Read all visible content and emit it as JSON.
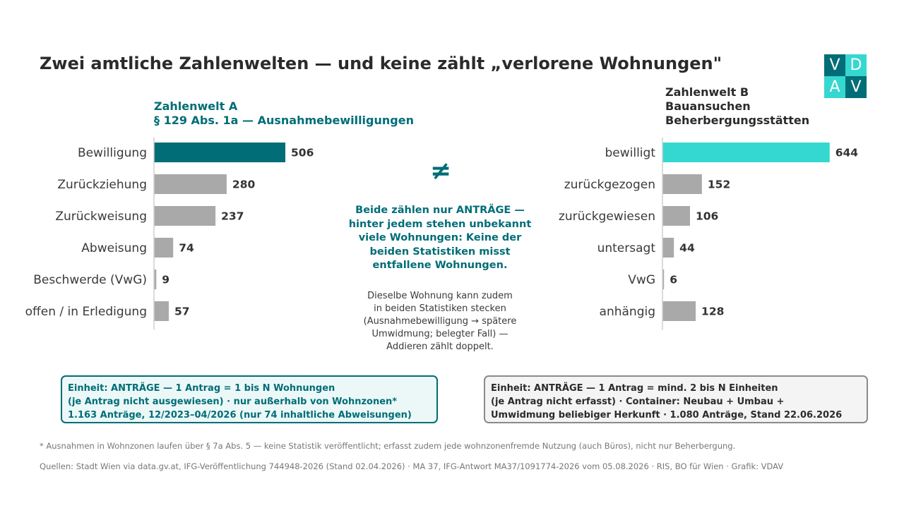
{
  "title": "Zwei amtliche Zahlenwelten — und keine zählt „verlorene Wohnungen\"",
  "logo": {
    "letters": [
      "V",
      "D",
      "A",
      "V"
    ],
    "colors": [
      "#006d77",
      "#35d8d0",
      "#35d8d0",
      "#006d77"
    ]
  },
  "colors": {
    "accent_a": "#006d77",
    "accent_b": "#35d8d0",
    "neutral": "#a9a9a9"
  },
  "chart_data": [
    {
      "type": "bar",
      "orientation": "horizontal",
      "title_lines": [
        "Zahlenwelt A",
        "§ 129 Abs. 1a — Ausnahmebewilligungen"
      ],
      "categories": [
        "Bewilligung",
        "Zurückziehung",
        "Zurückweisung",
        "Abweisung",
        "Beschwerde (VwG)",
        "offen / in Erledigung"
      ],
      "values": [
        506,
        280,
        237,
        74,
        9,
        57
      ],
      "highlight_index": 0,
      "highlight_color": "#006d77"
    },
    {
      "type": "bar",
      "orientation": "horizontal",
      "title_lines": [
        "Zahlenwelt B",
        "Bauansuchen",
        "Beherbergungsstätten"
      ],
      "categories": [
        "bewilligt",
        "zurückgezogen",
        "zurückgewiesen",
        "untersagt",
        "VwG",
        "anhängig"
      ],
      "values": [
        644,
        152,
        106,
        44,
        6,
        128
      ],
      "highlight_index": 0,
      "highlight_color": "#35d8d0"
    }
  ],
  "middle": {
    "symbol": "≠",
    "main_lines": [
      "Beide zählen nur ANTRÄGE —",
      "hinter jedem stehen unbekannt",
      "viele Wohnungen: Keine der",
      "beiden Statistiken misst",
      "entfallene Wohnungen."
    ],
    "sub_lines": [
      "Dieselbe Wohnung kann zudem",
      "in beiden Statistiken stecken",
      "(Ausnahmebewilligung → spätere",
      "Umwidmung; belegter Fall) —",
      "Addieren zählt doppelt."
    ]
  },
  "notes": {
    "a": [
      "Einheit: ANTRÄGE — 1 Antrag = 1 bis N Wohnungen",
      "(je Antrag nicht ausgewiesen) · nur außerhalb von Wohnzonen*",
      "1.163 Anträge, 12/2023–04/2026 (nur 74 inhaltliche Abweisungen)"
    ],
    "b": [
      "Einheit: ANTRÄGE — 1 Antrag = mind. 2 bis N Einheiten",
      "(je Antrag nicht erfasst) · Container: Neubau + Umbau +",
      "Umwidmung beliebiger Herkunft · 1.080 Anträge, Stand 22.06.2026"
    ]
  },
  "footnote": "* Ausnahmen in Wohnzonen laufen über § 7a Abs. 5 — keine Statistik veröffentlicht; erfasst zudem jede wohnzonenfremde Nutzung (auch Büros), nicht nur Beherbergung.",
  "sources": "Quellen: Stadt Wien via data.gv.at, IFG-Veröffentlichung 744948-2026 (Stand 02.04.2026) · MA 37, IFG-Antwort MA37/1091774-2026 vom 05.08.2026 · RIS, BO für Wien · Grafik: VDAV"
}
